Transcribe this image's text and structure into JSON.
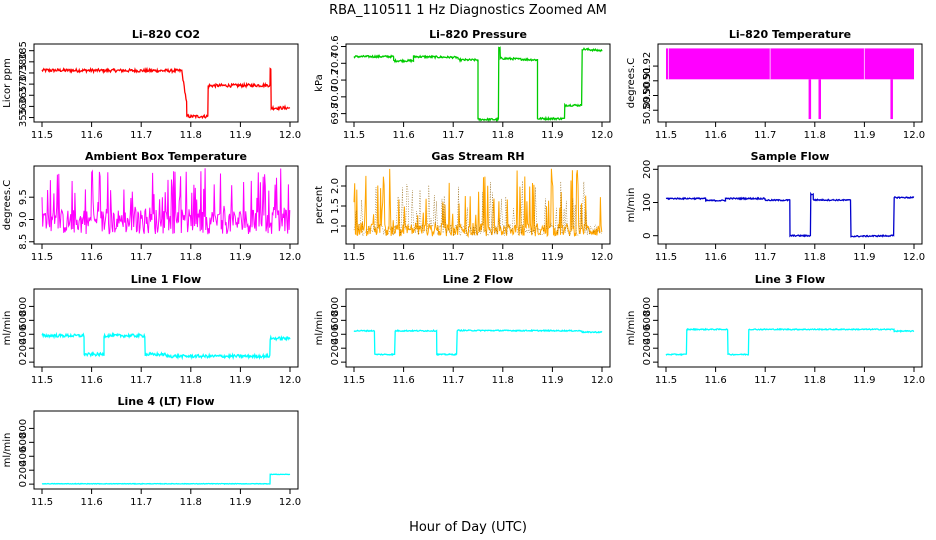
{
  "figure": {
    "suptitle": "RBA_110511  1 Hz Diagnostics Zoomed AM",
    "xlabel": "Hour of Day (UTC)"
  },
  "chart_data": [
    {
      "type": "line",
      "title": "Li–820 CO2",
      "ylabel": "Licor ppm",
      "color": "#ff0000",
      "xlim": [
        11.5,
        12.0
      ],
      "xticks": [
        "11.5",
        "11.6",
        "11.7",
        "11.8",
        "11.9",
        "12.0"
      ],
      "ylim": [
        353,
        388
      ],
      "yticks": [
        "355",
        "360",
        "365",
        "370",
        "375",
        "380",
        "385"
      ],
      "noise": 0.7,
      "segments": [
        {
          "x0": 11.5,
          "x1": 11.783,
          "y0": 376.2,
          "y1": 376.0
        },
        {
          "x0": 11.783,
          "x1": 11.792,
          "y0": 374,
          "y1": 361
        },
        {
          "x0": 11.792,
          "x1": 11.835,
          "y0": 355.5,
          "y1": 355.5
        },
        {
          "x0": 11.835,
          "x1": 11.96,
          "y0": 369.3,
          "y1": 369.5
        },
        {
          "x0": 11.96,
          "x1": 11.962,
          "y0": 376.5,
          "y1": 376.5
        },
        {
          "x0": 11.962,
          "x1": 12.0,
          "y0": 359.3,
          "y1": 359.3
        }
      ]
    },
    {
      "type": "line",
      "title": "Li–820 Pressure",
      "ylabel": "kPa",
      "color": "#00cc00",
      "xlim": [
        11.5,
        12.0
      ],
      "xticks": [
        "11.5",
        "11.6",
        "11.7",
        "11.8",
        "11.9",
        "12.0"
      ],
      "ylim": [
        69.7,
        70.63
      ],
      "yticks": [
        "69.8",
        "70.0",
        "70.2",
        "70.4",
        "70.6"
      ],
      "noise": 0.012,
      "segments": [
        {
          "x0": 11.5,
          "x1": 11.58,
          "y0": 70.48,
          "y1": 70.48
        },
        {
          "x0": 11.58,
          "x1": 11.62,
          "y0": 70.43,
          "y1": 70.43
        },
        {
          "x0": 11.62,
          "x1": 11.71,
          "y0": 70.48,
          "y1": 70.47
        },
        {
          "x0": 11.71,
          "x1": 11.75,
          "y0": 70.44,
          "y1": 70.44
        },
        {
          "x0": 11.75,
          "x1": 11.792,
          "y0": 69.73,
          "y1": 69.73
        },
        {
          "x0": 11.792,
          "x1": 11.795,
          "y0": 70.58,
          "y1": 70.58
        },
        {
          "x0": 11.795,
          "x1": 11.87,
          "y0": 70.46,
          "y1": 70.44
        },
        {
          "x0": 11.87,
          "x1": 11.925,
          "y0": 69.74,
          "y1": 69.74
        },
        {
          "x0": 11.925,
          "x1": 11.96,
          "y0": 69.9,
          "y1": 69.9
        },
        {
          "x0": 11.96,
          "x1": 12.0,
          "y0": 70.57,
          "y1": 70.55
        }
      ]
    },
    {
      "type": "line",
      "title": "Li–820 Temperature",
      "ylabel": "degrees.C",
      "color": "#ff00ff",
      "xlim": [
        11.5,
        12.0
      ],
      "xticks": [
        "11.5",
        "11.6",
        "11.7",
        "11.8",
        "11.9",
        "12.0"
      ],
      "ylim": [
        50.882,
        50.935
      ],
      "yticks": [
        "50.89",
        "50.90",
        "50.91",
        "50.92"
      ],
      "band": [
        50.911,
        50.932
      ],
      "dips": [
        {
          "x": 11.79,
          "y": 50.884
        },
        {
          "x": 11.81,
          "y": 50.884
        },
        {
          "x": 11.955,
          "y": 50.884
        }
      ]
    },
    {
      "type": "line",
      "title": "Ambient Box Temperature",
      "ylabel": "degrees.C",
      "color": "#ff00ff",
      "xlim": [
        11.5,
        12.0
      ],
      "xticks": [
        "11.5",
        "11.6",
        "11.7",
        "11.8",
        "11.9",
        "12.0"
      ],
      "ylim": [
        8.45,
        10.2
      ],
      "yticks": [
        "8.5",
        "9.0",
        "9.5"
      ],
      "base": 8.95,
      "spread": [
        8.6,
        10.15
      ]
    },
    {
      "type": "line",
      "title": "Gas Stream RH",
      "ylabel": "percent",
      "color": "#ffa500",
      "xlim": [
        11.5,
        12.0
      ],
      "xticks": [
        "11.5",
        "11.6",
        "11.7",
        "11.8",
        "11.9",
        "12.0"
      ],
      "ylim": [
        0.55,
        2.5
      ],
      "yticks": [
        "1.0",
        "1.5",
        "2.0"
      ],
      "base": 0.9,
      "spread": [
        0.7,
        2.45
      ]
    },
    {
      "type": "line",
      "title": "Sample Flow",
      "ylabel": "ml/min",
      "color": "#0000cc",
      "xlim": [
        11.5,
        12.0
      ],
      "xticks": [
        "11.5",
        "11.6",
        "11.7",
        "11.8",
        "11.9",
        "12.0"
      ],
      "ylim": [
        -25,
        210
      ],
      "yticks": [
        "0",
        "100",
        "200"
      ],
      "noise": 2,
      "segments": [
        {
          "x0": 11.5,
          "x1": 11.58,
          "y0": 112,
          "y1": 112
        },
        {
          "x0": 11.58,
          "x1": 11.62,
          "y0": 106,
          "y1": 106
        },
        {
          "x0": 11.62,
          "x1": 11.7,
          "y0": 112,
          "y1": 112
        },
        {
          "x0": 11.7,
          "x1": 11.75,
          "y0": 107,
          "y1": 107
        },
        {
          "x0": 11.75,
          "x1": 11.792,
          "y0": 0,
          "y1": 0
        },
        {
          "x0": 11.792,
          "x1": 11.797,
          "y0": 125,
          "y1": 125
        },
        {
          "x0": 11.797,
          "x1": 11.873,
          "y0": 108,
          "y1": 107
        },
        {
          "x0": 11.873,
          "x1": 11.96,
          "y0": -2,
          "y1": 0
        },
        {
          "x0": 11.96,
          "x1": 12.0,
          "y0": 115,
          "y1": 115
        }
      ]
    },
    {
      "type": "line",
      "title": "Line 1 Flow",
      "ylabel": "ml/min",
      "color": "#00ffff",
      "xlim": [
        11.5,
        12.0
      ],
      "xticks": [
        "11.5",
        "11.6",
        "11.7",
        "11.8",
        "11.9",
        "12.0"
      ],
      "ylim": [
        -70,
        1050
      ],
      "yticks": [
        "0",
        "200",
        "400",
        "600",
        "800"
      ],
      "noise": 22,
      "segments": [
        {
          "x0": 11.5,
          "x1": 11.585,
          "y0": 380,
          "y1": 380
        },
        {
          "x0": 11.585,
          "x1": 11.625,
          "y0": 110,
          "y1": 110
        },
        {
          "x0": 11.625,
          "x1": 11.708,
          "y0": 380,
          "y1": 380
        },
        {
          "x0": 11.708,
          "x1": 11.75,
          "y0": 110,
          "y1": 110
        },
        {
          "x0": 11.75,
          "x1": 11.96,
          "y0": 85,
          "y1": 85
        },
        {
          "x0": 11.96,
          "x1": 12.0,
          "y0": 340,
          "y1": 340
        }
      ]
    },
    {
      "type": "line",
      "title": "Line 2 Flow",
      "ylabel": "ml/min",
      "color": "#00ffff",
      "xlim": [
        11.5,
        12.0
      ],
      "xticks": [
        "11.5",
        "11.6",
        "11.7",
        "11.8",
        "11.9",
        "12.0"
      ],
      "ylim": [
        -70,
        1050
      ],
      "yticks": [
        "0",
        "200",
        "400",
        "600",
        "800"
      ],
      "noise": 8,
      "segments": [
        {
          "x0": 11.5,
          "x1": 11.542,
          "y0": 450,
          "y1": 450
        },
        {
          "x0": 11.542,
          "x1": 11.583,
          "y0": 110,
          "y1": 110
        },
        {
          "x0": 11.583,
          "x1": 11.667,
          "y0": 450,
          "y1": 450
        },
        {
          "x0": 11.667,
          "x1": 11.708,
          "y0": 110,
          "y1": 110
        },
        {
          "x0": 11.708,
          "x1": 11.96,
          "y0": 455,
          "y1": 450
        },
        {
          "x0": 11.96,
          "x1": 12.0,
          "y0": 430,
          "y1": 430
        }
      ]
    },
    {
      "type": "line",
      "title": "Line 3 Flow",
      "ylabel": "ml/min",
      "color": "#00ffff",
      "xlim": [
        11.5,
        12.0
      ],
      "xticks": [
        "11.5",
        "11.6",
        "11.7",
        "11.8",
        "11.9",
        "12.0"
      ],
      "ylim": [
        -70,
        1050
      ],
      "yticks": [
        "0",
        "200",
        "400",
        "600",
        "800"
      ],
      "noise": 8,
      "segments": [
        {
          "x0": 11.5,
          "x1": 11.542,
          "y0": 110,
          "y1": 110
        },
        {
          "x0": 11.542,
          "x1": 11.625,
          "y0": 470,
          "y1": 470
        },
        {
          "x0": 11.625,
          "x1": 11.667,
          "y0": 110,
          "y1": 110
        },
        {
          "x0": 11.667,
          "x1": 11.96,
          "y0": 470,
          "y1": 470
        },
        {
          "x0": 11.96,
          "x1": 12.0,
          "y0": 445,
          "y1": 445
        }
      ]
    },
    {
      "type": "line",
      "title": "Line 4 (LT) Flow",
      "ylabel": "ml/min",
      "color": "#00ffff",
      "xlim": [
        11.5,
        12.0
      ],
      "xticks": [
        "11.5",
        "11.6",
        "11.7",
        "11.8",
        "11.9",
        "12.0"
      ],
      "ylim": [
        -70,
        1050
      ],
      "yticks": [
        "0",
        "200",
        "400",
        "600",
        "800"
      ],
      "noise": 4,
      "segments": [
        {
          "x0": 11.5,
          "x1": 11.96,
          "y0": 5,
          "y1": 5
        },
        {
          "x0": 11.96,
          "x1": 12.0,
          "y0": 140,
          "y1": 140
        }
      ]
    }
  ]
}
